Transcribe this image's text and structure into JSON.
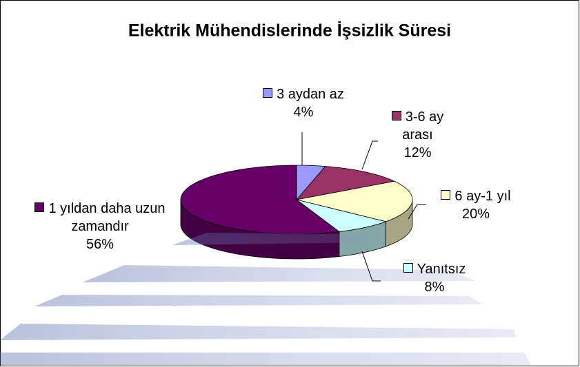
{
  "chart_data": {
    "type": "pie3d",
    "title": "Elektrik Mühendislerinde İşsizlik Süresi",
    "categories": [
      "3 aydan az",
      "3-6 ay arası",
      "6 ay-1 yıl",
      "Yanıtsız",
      "1 yıldan daha uzun zamandır"
    ],
    "values": [
      4,
      12,
      20,
      8,
      56
    ],
    "value_labels": [
      "4%",
      "12%",
      "20%",
      "8%",
      "56%"
    ],
    "colors": [
      "#9999ff",
      "#993366",
      "#ffffcc",
      "#ccffff",
      "#660066"
    ]
  }
}
